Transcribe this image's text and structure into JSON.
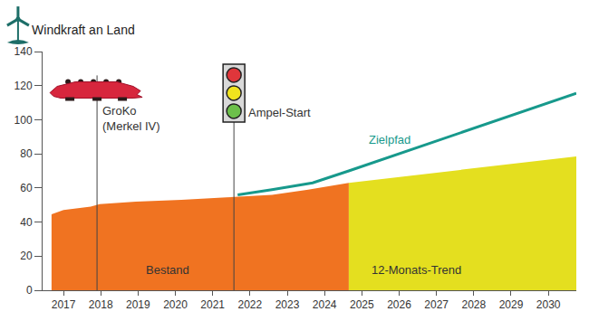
{
  "chart_data": {
    "type": "area",
    "title": "Windkraft an Land",
    "xlim": [
      2016.44,
      2030.75
    ],
    "xticks": [
      2017,
      2018,
      2019,
      2020,
      2021,
      2022,
      2023,
      2024,
      2025,
      2026,
      2027,
      2028,
      2029,
      2030
    ],
    "ylim": [
      0,
      140
    ],
    "yticks": [
      0,
      20,
      40,
      60,
      80,
      100,
      120,
      140
    ],
    "grid": false,
    "series": [
      {
        "name": "Bestand",
        "type": "area",
        "color": "#f07321",
        "x": [
          2016.68,
          2017.0,
          2017.73,
          2017.97,
          2018.94,
          2020.16,
          2021.37,
          2022.59,
          2023.56,
          2024.65
        ],
        "values": [
          44.5,
          47,
          49,
          50.5,
          52,
          53,
          54.5,
          56,
          59,
          63
        ]
      },
      {
        "name": "12-Monats-Trend",
        "type": "area",
        "color": "#e4df1f",
        "x": [
          2024.65,
          2030.75
        ],
        "values": [
          63,
          78.5
        ]
      },
      {
        "name": "Zielpfad",
        "type": "line",
        "color": "#17998c",
        "x": [
          2021.67,
          2022.59,
          2023.68,
          2024.65,
          2030.75
        ],
        "values": [
          56,
          59,
          63,
          70,
          115.5
        ]
      }
    ],
    "annotations": [
      {
        "x": 2017.9,
        "text": [
          "GroKo",
          "(Merkel IV)"
        ]
      },
      {
        "x": 2021.57,
        "text": [
          "Ampel-Start"
        ]
      }
    ]
  }
}
